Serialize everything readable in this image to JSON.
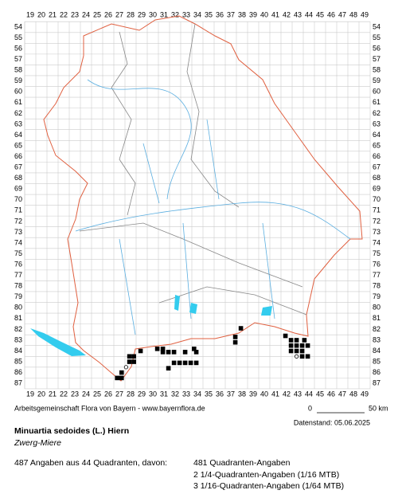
{
  "map": {
    "columns": [
      19,
      20,
      21,
      22,
      23,
      24,
      25,
      26,
      27,
      28,
      29,
      30,
      31,
      32,
      33,
      34,
      35,
      36,
      37,
      38,
      39,
      40,
      41,
      42,
      43,
      44,
      45,
      46,
      47,
      48,
      49
    ],
    "rows": [
      54,
      55,
      56,
      57,
      58,
      59,
      60,
      61,
      62,
      63,
      64,
      65,
      66,
      67,
      68,
      69,
      70,
      71,
      72,
      73,
      74,
      75,
      76,
      77,
      78,
      79,
      80,
      81,
      82,
      83,
      84,
      85,
      86,
      87
    ],
    "records": [
      [
        26.8,
        86.5
      ],
      [
        27.2,
        86.5
      ],
      [
        27.2,
        86
      ],
      [
        27.9,
        85
      ],
      [
        28.3,
        85
      ],
      [
        27.9,
        84.5
      ],
      [
        28.3,
        84.5
      ],
      [
        28.9,
        84
      ],
      [
        30.4,
        83.8
      ],
      [
        30.9,
        83.8
      ],
      [
        30.9,
        84.1
      ],
      [
        31.4,
        84.1
      ],
      [
        31.9,
        84.1
      ],
      [
        32.9,
        84.1
      ],
      [
        33.9,
        84.1
      ],
      [
        31.4,
        85.6
      ],
      [
        31.9,
        85.1
      ],
      [
        32.4,
        85.1
      ],
      [
        32.9,
        85.1
      ],
      [
        33.4,
        85.1
      ],
      [
        33.9,
        85.1
      ],
      [
        33.7,
        83.8
      ],
      [
        37.4,
        83.2
      ],
      [
        37.4,
        82.7
      ],
      [
        37.9,
        81.9
      ],
      [
        41.9,
        82.6
      ],
      [
        42.4,
        83
      ],
      [
        42.9,
        83
      ],
      [
        43.6,
        83
      ],
      [
        42.4,
        83.5
      ],
      [
        42.9,
        83.5
      ],
      [
        43.4,
        83.5
      ],
      [
        43.9,
        83.5
      ],
      [
        42.4,
        84
      ],
      [
        42.9,
        84
      ],
      [
        43.4,
        84
      ],
      [
        43.4,
        84.5
      ],
      [
        43.9,
        84.5
      ]
    ],
    "open_records": [
      [
        27.6,
        85.5
      ],
      [
        42.9,
        84.5
      ]
    ],
    "credit": "Arbeitsgemeinschaft Flora von Bayern - www.bayernflora.de",
    "scale_start": "0",
    "scale_end": "50 km",
    "data_date": "Datenstand: 05.06.2025",
    "species": "Minuartia sedoides (L.) Hiern",
    "common_name": "Zwerg-Miere",
    "summary": "487 Angaben aus 44 Quadranten, davon:",
    "counts": [
      "481 Quadranten-Angaben",
      "2 1/4-Quadranten-Angaben (1/16 MTB)",
      "3 1/16-Quadranten-Angaben (1/64 MTB)"
    ]
  }
}
